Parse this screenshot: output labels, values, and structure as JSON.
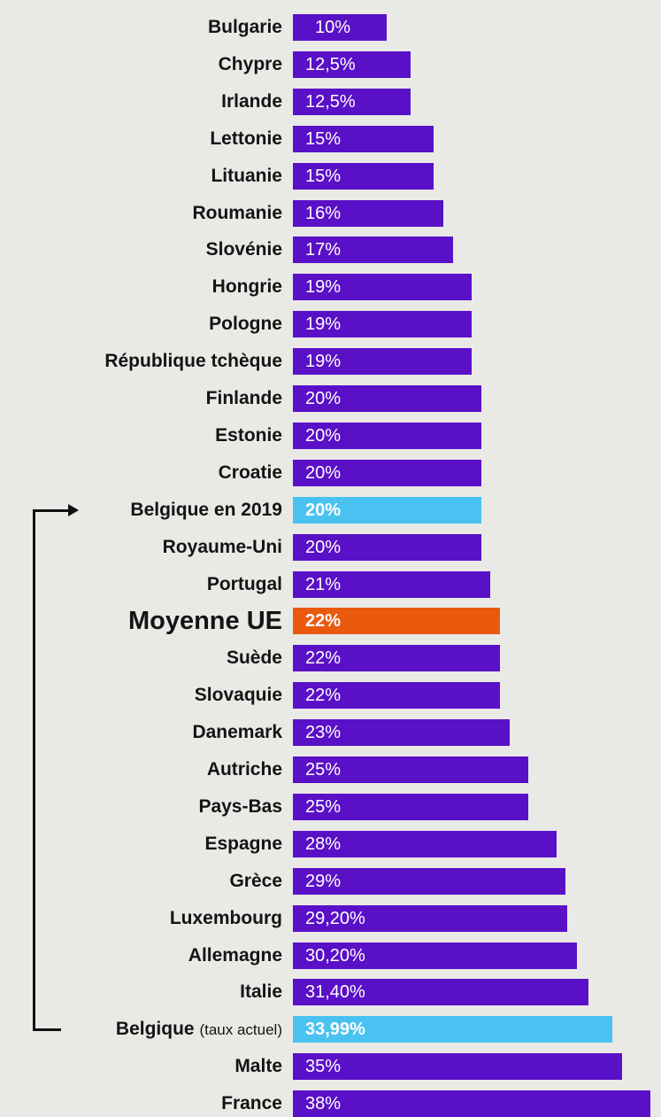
{
  "chart_data": {
    "type": "bar",
    "orientation": "horizontal",
    "xlim": [
      0,
      38
    ],
    "grid": false,
    "categories": [
      "Bulgarie",
      "Chypre",
      "Irlande",
      "Lettonie",
      "Lituanie",
      "Roumanie",
      "Slovénie",
      "Hongrie",
      "Pologne",
      "République tchèque",
      "Finlande",
      "Estonie",
      "Croatie",
      "Belgique en 2019",
      "Royaume-Uni",
      "Portugal",
      "Moyenne UE",
      "Suède",
      "Slovaquie",
      "Danemark",
      "Autriche",
      "Pays-Bas",
      "Espagne",
      "Grèce",
      "Luxembourg",
      "Allemagne",
      "Italie",
      "Belgique",
      "Malte",
      "France"
    ],
    "category_notes": [
      "",
      "",
      "",
      "",
      "",
      "",
      "",
      "",
      "",
      "",
      "",
      "",
      "",
      "",
      "",
      "",
      "",
      "",
      "",
      "",
      "",
      "",
      "",
      "",
      "",
      "",
      "",
      "(taux actuel)",
      "",
      ""
    ],
    "values": [
      10,
      12.5,
      12.5,
      15,
      15,
      16,
      17,
      19,
      19,
      19,
      20,
      20,
      20,
      20,
      20,
      21,
      22,
      22,
      22,
      23,
      25,
      25,
      28,
      29,
      29.2,
      30.2,
      31.4,
      33.99,
      35,
      38
    ],
    "value_labels": [
      "10%",
      "12,5%",
      "12,5%",
      "15%",
      "15%",
      "16%",
      "17%",
      "19%",
      "19%",
      "19%",
      "20%",
      "20%",
      "20%",
      "20%",
      "20%",
      "21%",
      "22%",
      "22%",
      "22%",
      "23%",
      "25%",
      "25%",
      "28%",
      "29%",
      "29,20%",
      "30,20%",
      "31,40%",
      "33,99%",
      "35%",
      "38%"
    ],
    "highlight": {
      "Belgique en 2019": "belgium",
      "Belgique": "belgium",
      "Moyenne UE": "average"
    },
    "colors": {
      "default": "#5a10c7",
      "belgium": "#49c2f1",
      "average": "#e95a0f",
      "label": "#141414",
      "value_text": "#ffffff"
    }
  }
}
